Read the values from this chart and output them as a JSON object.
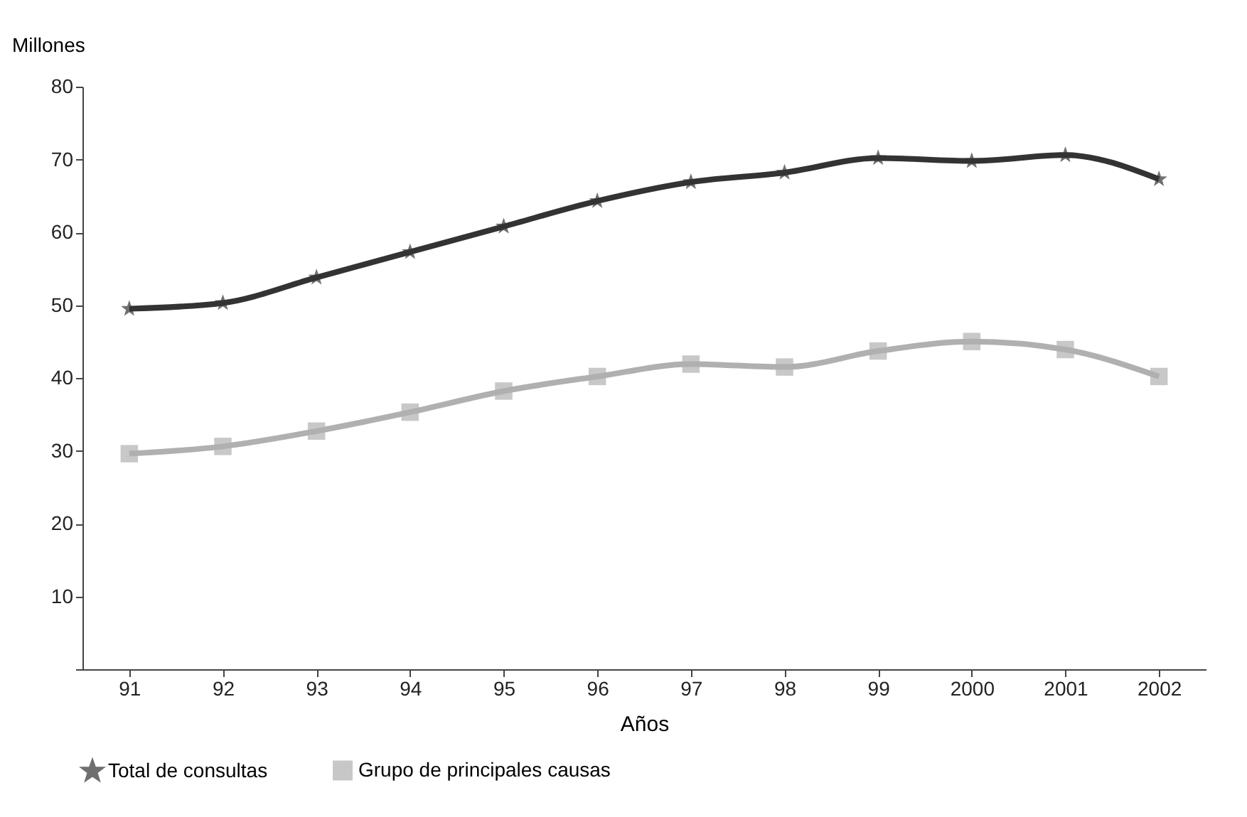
{
  "chart_data": {
    "type": "line",
    "xlabel": "Años",
    "ylabel": "Millones",
    "categories": [
      "91",
      "92",
      "93",
      "94",
      "95",
      "96",
      "97",
      "98",
      "99",
      "2000",
      "2001",
      "2002"
    ],
    "series": [
      {
        "name": "Total de consultas",
        "color": "#333333",
        "marker": "star",
        "values": [
          49.5,
          50.3,
          53.8,
          57.3,
          60.8,
          64.3,
          66.9,
          68.2,
          70.2,
          69.8,
          70.6,
          67.3
        ]
      },
      {
        "name": "Grupo de principales causas",
        "color": "#b0b0b0",
        "marker": "square",
        "values": [
          29.6,
          30.6,
          32.7,
          35.3,
          38.2,
          40.2,
          41.9,
          41.5,
          43.7,
          45.0,
          43.9,
          40.2
        ]
      }
    ],
    "ylim": [
      0,
      80
    ],
    "yticks": [
      {
        "value": 0,
        "label": null
      },
      10,
      20,
      30,
      40,
      50,
      60,
      70,
      80
    ],
    "legend": "bottom",
    "grid": false,
    "line_style": "solid"
  }
}
